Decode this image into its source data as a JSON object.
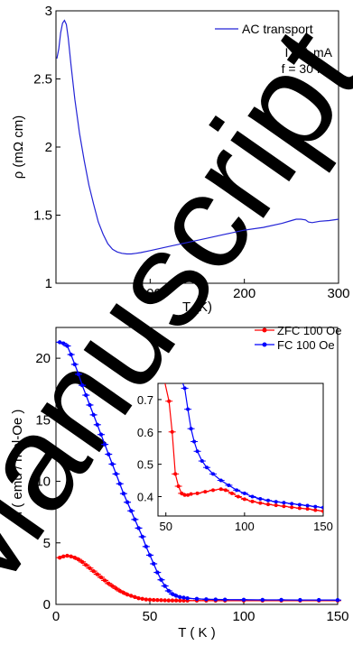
{
  "watermark": "Manuscript",
  "colors": {
    "ac": "#2323d6",
    "zfc": "#ff0000",
    "fc": "#0000ff",
    "axis": "#000000"
  },
  "chart_data": [
    {
      "id": "panel_top",
      "type": "line",
      "xlabel": "T (K)",
      "ylabel": "ρ (mΩ cm)",
      "xlim": [
        0,
        300
      ],
      "ylim": [
        1,
        3
      ],
      "xticks": [
        100,
        200,
        300
      ],
      "yticks": [
        1,
        1.5,
        2,
        2.5,
        3
      ],
      "legend": "top-right",
      "annotations": [
        "I = 1 mA",
        "f = 30 Hz"
      ],
      "series": [
        {
          "name": "AC transport",
          "x": [
            1,
            3,
            5,
            7,
            9,
            11,
            13,
            16,
            20,
            25,
            30,
            35,
            40,
            45,
            50,
            55,
            60,
            65,
            70,
            75,
            80,
            85,
            90,
            100,
            120,
            140,
            160,
            180,
            200,
            220,
            240,
            250,
            255,
            260,
            265,
            268,
            272,
            280,
            290,
            300
          ],
          "y": [
            2.65,
            2.72,
            2.84,
            2.91,
            2.93,
            2.9,
            2.8,
            2.6,
            2.35,
            2.1,
            1.9,
            1.72,
            1.58,
            1.45,
            1.36,
            1.29,
            1.25,
            1.23,
            1.22,
            1.215,
            1.215,
            1.22,
            1.225,
            1.24,
            1.27,
            1.3,
            1.33,
            1.36,
            1.39,
            1.41,
            1.44,
            1.46,
            1.47,
            1.47,
            1.465,
            1.45,
            1.445,
            1.455,
            1.46,
            1.47
          ]
        }
      ]
    },
    {
      "id": "panel_bottom",
      "type": "line",
      "xlabel": "T ( K )",
      "ylabel": "M ( emu / mol-Oe )",
      "xlim": [
        0,
        150
      ],
      "ylim": [
        0,
        22.5
      ],
      "xticks": [
        0,
        50,
        100,
        150
      ],
      "yticks": [
        0,
        5,
        10,
        15,
        20
      ],
      "legend": "top-right",
      "series": [
        {
          "name": "ZFC 100 Oe",
          "x": [
            2,
            4,
            6,
            8,
            10,
            12,
            14,
            16,
            18,
            20,
            22,
            24,
            26,
            28,
            30,
            32,
            34,
            36,
            38,
            40,
            42,
            44,
            46,
            48,
            50,
            52,
            54,
            56,
            58,
            60,
            62,
            64,
            66,
            68,
            70,
            75,
            80,
            85,
            90,
            100,
            110,
            120,
            130,
            140,
            150
          ],
          "y": [
            3.8,
            3.9,
            3.95,
            3.9,
            3.8,
            3.65,
            3.45,
            3.2,
            2.95,
            2.7,
            2.45,
            2.2,
            1.95,
            1.7,
            1.5,
            1.3,
            1.1,
            0.95,
            0.8,
            0.7,
            0.6,
            0.5,
            0.45,
            0.4,
            0.38,
            0.36,
            0.35,
            0.34,
            0.33,
            0.32,
            0.32,
            0.32,
            0.31,
            0.31,
            0.31,
            0.31,
            0.31,
            0.31,
            0.31,
            0.31,
            0.31,
            0.31,
            0.31,
            0.31,
            0.31
          ]
        },
        {
          "name": "FC 100 Oe",
          "x": [
            2,
            4,
            6,
            8,
            10,
            12,
            14,
            16,
            18,
            20,
            22,
            24,
            26,
            28,
            30,
            32,
            34,
            36,
            38,
            40,
            42,
            44,
            46,
            48,
            50,
            52,
            54,
            56,
            58,
            60,
            62,
            64,
            66,
            68,
            70,
            75,
            80,
            85,
            90,
            100,
            110,
            120,
            130,
            140,
            150
          ],
          "y": [
            21.3,
            21.2,
            21.0,
            20.3,
            19.5,
            18.7,
            17.8,
            17.0,
            16.2,
            15.4,
            14.6,
            13.8,
            13.0,
            12.2,
            11.4,
            10.6,
            9.8,
            9.0,
            8.3,
            7.6,
            6.9,
            6.2,
            5.5,
            4.7,
            4.0,
            3.3,
            2.6,
            2.0,
            1.5,
            1.1,
            0.85,
            0.7,
            0.6,
            0.55,
            0.5,
            0.45,
            0.42,
            0.4,
            0.39,
            0.38,
            0.37,
            0.37,
            0.36,
            0.36,
            0.35
          ]
        }
      ]
    },
    {
      "id": "panel_inset",
      "type": "line",
      "xlim": [
        45,
        150
      ],
      "ylim": [
        0.34,
        0.75
      ],
      "xticks": [
        50,
        100,
        150
      ],
      "yticks": [
        0.4,
        0.5,
        0.6,
        0.7
      ],
      "series": [
        {
          "name": "ZFC 100 Oe",
          "x": [
            49,
            52,
            54,
            56,
            58,
            60,
            62,
            64,
            66,
            70,
            75,
            80,
            85,
            88,
            92,
            96,
            100,
            105,
            110,
            115,
            120,
            125,
            130,
            135,
            140,
            145,
            150
          ],
          "y": [
            0.76,
            0.695,
            0.6,
            0.47,
            0.432,
            0.41,
            0.405,
            0.405,
            0.408,
            0.41,
            0.415,
            0.42,
            0.423,
            0.42,
            0.41,
            0.4,
            0.392,
            0.385,
            0.38,
            0.376,
            0.373,
            0.37,
            0.367,
            0.364,
            0.362,
            0.358,
            0.355
          ]
        },
        {
          "name": "FC 100 Oe",
          "x": [
            60,
            62,
            64,
            66,
            68,
            70,
            73,
            76,
            80,
            85,
            90,
            95,
            100,
            105,
            110,
            115,
            120,
            125,
            130,
            135,
            140,
            145,
            150
          ],
          "y": [
            0.76,
            0.735,
            0.67,
            0.61,
            0.57,
            0.54,
            0.51,
            0.49,
            0.47,
            0.45,
            0.435,
            0.42,
            0.41,
            0.4,
            0.393,
            0.388,
            0.384,
            0.381,
            0.378,
            0.375,
            0.372,
            0.369,
            0.366
          ]
        }
      ]
    }
  ]
}
